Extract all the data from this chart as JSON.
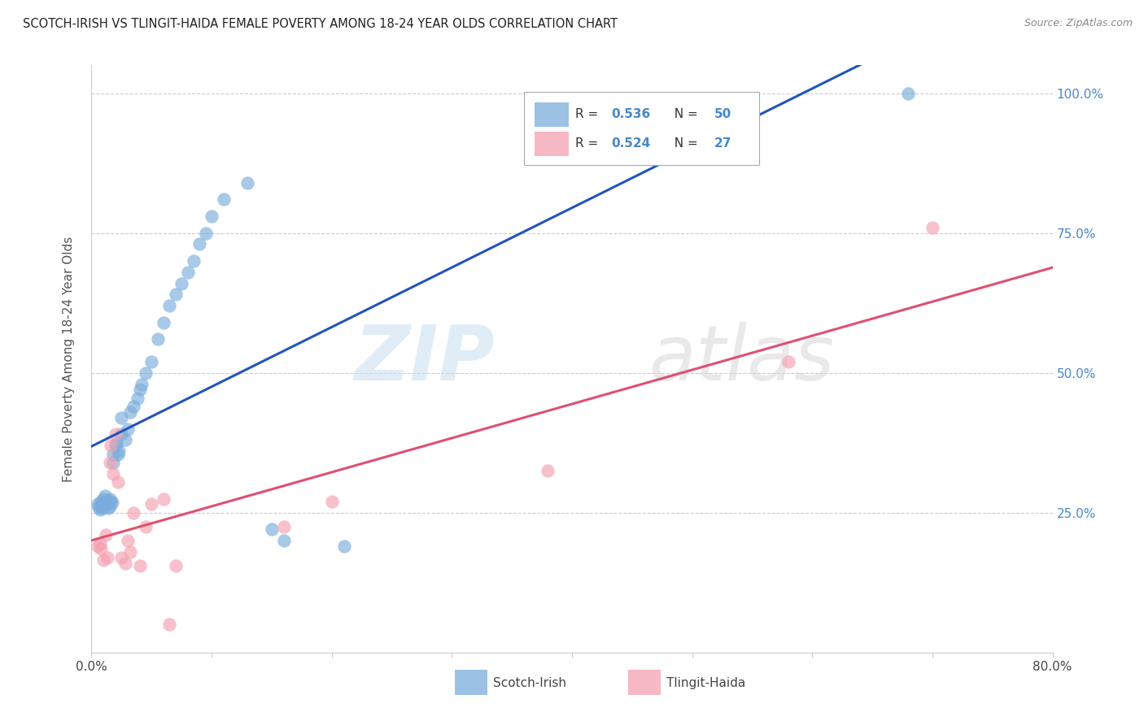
{
  "title": "SCOTCH-IRISH VS TLINGIT-HAIDA FEMALE POVERTY AMONG 18-24 YEAR OLDS CORRELATION CHART",
  "source": "Source: ZipAtlas.com",
  "ylabel": "Female Poverty Among 18-24 Year Olds",
  "xlim": [
    0.0,
    0.8
  ],
  "ylim": [
    0.0,
    1.05
  ],
  "scotch_irish_color": "#7aaddb",
  "tlingit_haida_color": "#f4a0b0",
  "scotch_irish_line_color": "#2255bb",
  "tlingit_haida_line_color": "#e05070",
  "scotch_irish_R": "0.536",
  "scotch_irish_N": "50",
  "tlingit_haida_R": "0.524",
  "tlingit_haida_N": "27",
  "legend_label_1": "Scotch-Irish",
  "legend_label_2": "Tlingit-Haida",
  "watermark_zip": "ZIP",
  "watermark_atlas": "atlas",
  "grid_color": "#cccccc",
  "background_color": "#ffffff",
  "right_axis_color": "#4488cc",
  "si_x": [
    0.005,
    0.006,
    0.007,
    0.008,
    0.008,
    0.009,
    0.01,
    0.01,
    0.011,
    0.012,
    0.013,
    0.013,
    0.014,
    0.015,
    0.015,
    0.016,
    0.017,
    0.018,
    0.018,
    0.02,
    0.021,
    0.022,
    0.023,
    0.025,
    0.025,
    0.028,
    0.03,
    0.032,
    0.035,
    0.038,
    0.04,
    0.042,
    0.045,
    0.05,
    0.055,
    0.06,
    0.065,
    0.07,
    0.075,
    0.08,
    0.085,
    0.09,
    0.095,
    0.1,
    0.11,
    0.13,
    0.15,
    0.16,
    0.21,
    0.68
  ],
  "si_y": [
    0.265,
    0.26,
    0.255,
    0.27,
    0.262,
    0.258,
    0.275,
    0.268,
    0.28,
    0.268,
    0.265,
    0.272,
    0.258,
    0.262,
    0.275,
    0.27,
    0.268,
    0.34,
    0.355,
    0.37,
    0.375,
    0.355,
    0.36,
    0.39,
    0.42,
    0.38,
    0.4,
    0.43,
    0.44,
    0.455,
    0.47,
    0.48,
    0.5,
    0.52,
    0.56,
    0.59,
    0.62,
    0.64,
    0.66,
    0.68,
    0.7,
    0.73,
    0.75,
    0.78,
    0.81,
    0.84,
    0.22,
    0.2,
    0.19,
    1.0
  ],
  "th_x": [
    0.005,
    0.007,
    0.008,
    0.01,
    0.012,
    0.013,
    0.015,
    0.016,
    0.018,
    0.02,
    0.022,
    0.025,
    0.028,
    0.03,
    0.032,
    0.035,
    0.04,
    0.045,
    0.05,
    0.06,
    0.065,
    0.07,
    0.16,
    0.2,
    0.38,
    0.58,
    0.7
  ],
  "th_y": [
    0.19,
    0.195,
    0.185,
    0.165,
    0.21,
    0.17,
    0.34,
    0.37,
    0.32,
    0.39,
    0.305,
    0.17,
    0.16,
    0.2,
    0.18,
    0.25,
    0.155,
    0.225,
    0.265,
    0.275,
    0.05,
    0.155,
    0.225,
    0.27,
    0.325,
    0.52,
    0.76
  ]
}
